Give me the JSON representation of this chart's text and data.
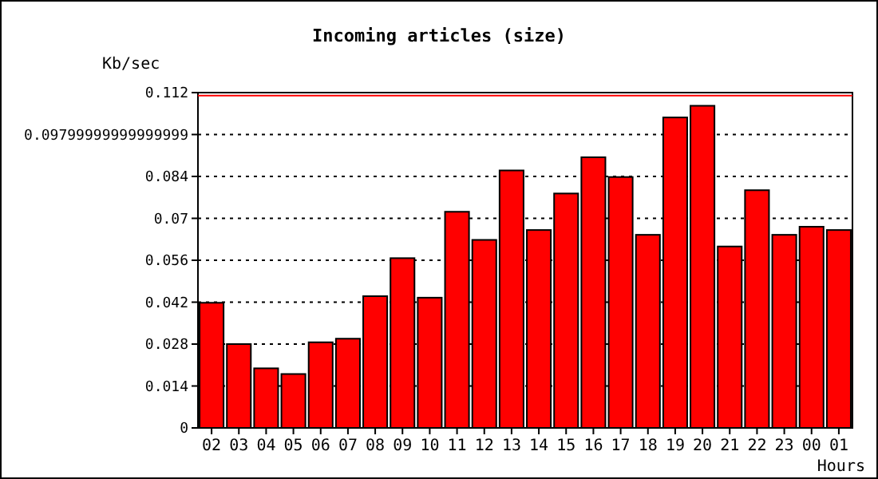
{
  "chart_data": {
    "type": "bar",
    "title": "Incoming articles (size)",
    "ylabel": "Kb/sec",
    "xlabel": "Hours",
    "categories": [
      "02",
      "03",
      "04",
      "05",
      "06",
      "07",
      "08",
      "09",
      "10",
      "11",
      "12",
      "13",
      "14",
      "15",
      "16",
      "17",
      "18",
      "19",
      "20",
      "21",
      "22",
      "23",
      "00",
      "01"
    ],
    "values": [
      0.0418,
      0.028,
      0.0199,
      0.018,
      0.0286,
      0.0298,
      0.044,
      0.0567,
      0.0435,
      0.0722,
      0.0628,
      0.086,
      0.0661,
      0.0783,
      0.0904,
      0.0838,
      0.0645,
      0.1037,
      0.1076,
      0.0606,
      0.0794,
      0.0645,
      0.0672,
      0.0661
    ],
    "color": "#ff0000",
    "ylim": [
      0,
      0.112
    ],
    "yticks": [
      0,
      0.014,
      0.028,
      0.042,
      0.056,
      0.07,
      0.084,
      {
        "value": 0.098,
        "label": "0.09799999999999999"
      },
      0.112
    ],
    "ref_lines": [
      {
        "axis": "y",
        "value": 0.111,
        "color": "#ff0000"
      }
    ],
    "grid": "y"
  }
}
